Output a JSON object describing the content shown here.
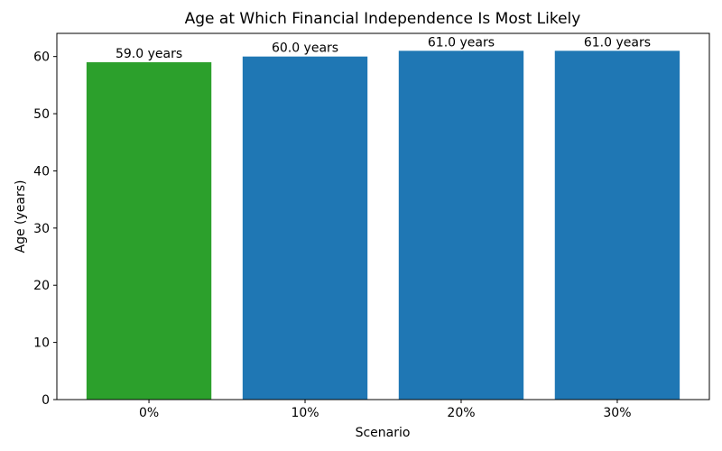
{
  "chart_data": {
    "type": "bar",
    "title": "Age at Which Financial Independence Is Most Likely",
    "xlabel": "Scenario",
    "ylabel": "Age (years)",
    "categories": [
      "0%",
      "10%",
      "20%",
      "30%"
    ],
    "values": [
      59.0,
      60.0,
      61.0,
      61.0
    ],
    "bar_labels": [
      "59.0 years",
      "60.0 years",
      "61.0 years",
      "61.0 years"
    ],
    "bar_colors": [
      "#2ca02c",
      "#1f77b4",
      "#1f77b4",
      "#1f77b4"
    ],
    "yticks": [
      0,
      10,
      20,
      30,
      40,
      50,
      60
    ],
    "ylim": [
      0,
      64.05
    ],
    "xlim": [
      -0.59,
      3.59
    ],
    "bar_width": 0.8,
    "grid": false,
    "legend_position": "none",
    "axis_color": "#000000",
    "background_color": "#ffffff"
  }
}
